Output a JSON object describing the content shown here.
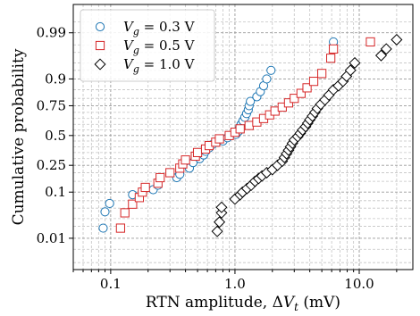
{
  "chart_data": {
    "type": "scatter",
    "xlabel": "RTN amplitude, ΔVt (mV)",
    "xlabel_parts": {
      "prefix": "RTN amplitude, ",
      "delta": "Δ",
      "var": "V",
      "sub": "t",
      "suffix": " (mV)"
    },
    "ylabel": "Cumulative probability",
    "x_scale": "log",
    "y_scale": "normal-probability",
    "xlim": [
      0.05,
      27
    ],
    "x_ticks": [
      0.1,
      1.0,
      10.0
    ],
    "x_tick_labels": [
      "0.1",
      "1.0",
      "10.0"
    ],
    "y_ticks": [
      0.01,
      0.1,
      0.25,
      0.5,
      0.75,
      0.9,
      0.99
    ],
    "y_tick_labels": [
      "0.01",
      "0.1",
      "0.25",
      "0.5",
      "0.75",
      "0.9",
      "0.99"
    ],
    "grid": true,
    "legend_position": "top-left",
    "series": [
      {
        "name": "Vg = 0.3 V",
        "name_parts": {
          "var": "V",
          "sub": "g",
          "value": " = 0.3 V"
        },
        "marker": "circle",
        "color": "#1f77b4",
        "points": [
          [
            0.087,
            0.018
          ],
          [
            0.09,
            0.042
          ],
          [
            0.098,
            0.062
          ],
          [
            0.15,
            0.09
          ],
          [
            0.22,
            0.11
          ],
          [
            0.24,
            0.13
          ],
          [
            0.34,
            0.17
          ],
          [
            0.36,
            0.19
          ],
          [
            0.43,
            0.23
          ],
          [
            0.46,
            0.27
          ],
          [
            0.52,
            0.3
          ],
          [
            0.56,
            0.33
          ],
          [
            0.58,
            0.36
          ],
          [
            0.62,
            0.39
          ],
          [
            0.66,
            0.42
          ],
          [
            0.8,
            0.45
          ],
          [
            0.87,
            0.48
          ],
          [
            1.02,
            0.51
          ],
          [
            1.07,
            0.54
          ],
          [
            1.09,
            0.57
          ],
          [
            1.12,
            0.6
          ],
          [
            1.16,
            0.63
          ],
          [
            1.2,
            0.66
          ],
          [
            1.24,
            0.69
          ],
          [
            1.28,
            0.72
          ],
          [
            1.3,
            0.75
          ],
          [
            1.33,
            0.78
          ],
          [
            1.5,
            0.81
          ],
          [
            1.6,
            0.84
          ],
          [
            1.7,
            0.87
          ],
          [
            1.8,
            0.9
          ],
          [
            1.95,
            0.93
          ],
          [
            6.2,
            0.983
          ]
        ]
      },
      {
        "name": "Vg = 0.5 V",
        "name_parts": {
          "var": "V",
          "sub": "g",
          "value": " = 0.5 V"
        },
        "marker": "square",
        "color": "#d62728",
        "points": [
          [
            0.12,
            0.018
          ],
          [
            0.13,
            0.04
          ],
          [
            0.15,
            0.06
          ],
          [
            0.17,
            0.08
          ],
          [
            0.18,
            0.1
          ],
          [
            0.19,
            0.12
          ],
          [
            0.24,
            0.14
          ],
          [
            0.25,
            0.17
          ],
          [
            0.3,
            0.2
          ],
          [
            0.36,
            0.23
          ],
          [
            0.38,
            0.26
          ],
          [
            0.4,
            0.29
          ],
          [
            0.48,
            0.32
          ],
          [
            0.5,
            0.35
          ],
          [
            0.58,
            0.38
          ],
          [
            0.62,
            0.41
          ],
          [
            0.7,
            0.44
          ],
          [
            0.75,
            0.47
          ],
          [
            0.9,
            0.5
          ],
          [
            1.0,
            0.53
          ],
          [
            1.1,
            0.56
          ],
          [
            1.3,
            0.59
          ],
          [
            1.5,
            0.62
          ],
          [
            1.7,
            0.65
          ],
          [
            1.9,
            0.68
          ],
          [
            2.1,
            0.71
          ],
          [
            2.4,
            0.74
          ],
          [
            2.7,
            0.77
          ],
          [
            3.0,
            0.8
          ],
          [
            3.4,
            0.83
          ],
          [
            3.8,
            0.86
          ],
          [
            4.3,
            0.89
          ],
          [
            5.0,
            0.92
          ],
          [
            5.9,
            0.96
          ],
          [
            6.2,
            0.975
          ],
          [
            12.3,
            0.983
          ]
        ]
      },
      {
        "name": "Vg = 1.0 V",
        "name_parts": {
          "var": "V",
          "sub": "g",
          "value": " = 1.0 V"
        },
        "marker": "diamond",
        "color": "#000000",
        "points": [
          [
            0.72,
            0.015
          ],
          [
            0.75,
            0.025
          ],
          [
            0.78,
            0.04
          ],
          [
            0.78,
            0.052
          ],
          [
            1.0,
            0.075
          ],
          [
            1.1,
            0.09
          ],
          [
            1.15,
            0.1
          ],
          [
            1.25,
            0.115
          ],
          [
            1.35,
            0.13
          ],
          [
            1.45,
            0.15
          ],
          [
            1.55,
            0.165
          ],
          [
            1.65,
            0.18
          ],
          [
            1.8,
            0.2
          ],
          [
            2.0,
            0.22
          ],
          [
            2.2,
            0.25
          ],
          [
            2.4,
            0.28
          ],
          [
            2.5,
            0.31
          ],
          [
            2.6,
            0.34
          ],
          [
            2.7,
            0.37
          ],
          [
            2.8,
            0.4
          ],
          [
            2.9,
            0.43
          ],
          [
            3.0,
            0.46
          ],
          [
            3.2,
            0.49
          ],
          [
            3.35,
            0.52
          ],
          [
            3.5,
            0.55
          ],
          [
            3.7,
            0.58
          ],
          [
            3.85,
            0.61
          ],
          [
            4.0,
            0.64
          ],
          [
            4.2,
            0.67
          ],
          [
            4.4,
            0.7
          ],
          [
            4.6,
            0.73
          ],
          [
            4.9,
            0.76
          ],
          [
            5.3,
            0.79
          ],
          [
            5.7,
            0.82
          ],
          [
            6.2,
            0.85
          ],
          [
            6.8,
            0.87
          ],
          [
            7.4,
            0.89
          ],
          [
            7.9,
            0.91
          ],
          [
            8.5,
            0.93
          ],
          [
            9.2,
            0.95
          ],
          [
            15.0,
            0.965
          ],
          [
            16.5,
            0.975
          ],
          [
            20.0,
            0.985
          ]
        ]
      }
    ]
  }
}
